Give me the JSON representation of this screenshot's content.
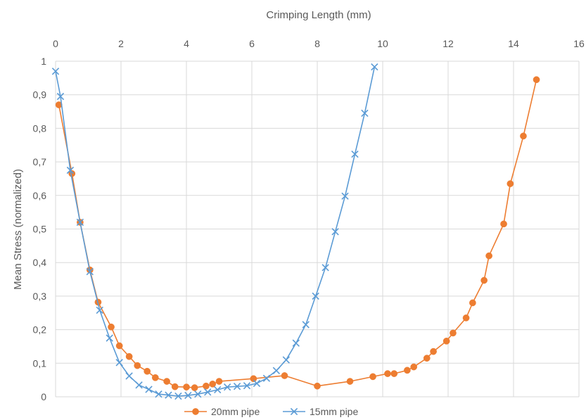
{
  "chart_data": {
    "type": "scatter",
    "xlabel": "Crimping Length (mm)",
    "ylabel": "Mean Stress (normalized)",
    "xlim": [
      0,
      16
    ],
    "ylim": [
      0,
      1
    ],
    "x_ticks": [
      "0",
      "2",
      "4",
      "6",
      "8",
      "10",
      "12",
      "14",
      "16"
    ],
    "y_ticks": [
      "0",
      "0,1",
      "0,2",
      "0,3",
      "0,4",
      "0,5",
      "0,6",
      "0,7",
      "0,8",
      "0,9",
      "1"
    ],
    "x_axis_position": "top",
    "grid": true,
    "legend_position": "bottom",
    "series": [
      {
        "name": "20mm pipe",
        "color": "#ed7d31",
        "marker": "circle",
        "x": [
          0.1,
          0.5,
          0.75,
          1.05,
          1.3,
          1.7,
          1.95,
          2.25,
          2.5,
          2.8,
          3.05,
          3.4,
          3.65,
          4.0,
          4.25,
          4.6,
          4.8,
          5.0,
          6.05,
          7.0,
          8.0,
          9.0,
          9.7,
          10.15,
          10.35,
          10.75,
          10.95,
          11.35,
          11.55,
          11.95,
          12.15,
          12.55,
          12.75,
          13.1,
          13.25,
          13.7,
          13.9,
          14.3,
          14.7
        ],
        "y": [
          0.87,
          0.665,
          0.52,
          0.378,
          0.282,
          0.208,
          0.152,
          0.12,
          0.093,
          0.076,
          0.057,
          0.046,
          0.03,
          0.029,
          0.027,
          0.032,
          0.038,
          0.046,
          0.054,
          0.063,
          0.032,
          0.046,
          0.06,
          0.069,
          0.069,
          0.079,
          0.089,
          0.115,
          0.135,
          0.166,
          0.19,
          0.235,
          0.28,
          0.347,
          0.42,
          0.515,
          0.635,
          0.777,
          0.945
        ]
      },
      {
        "name": "15mm pipe",
        "color": "#5b9bd5",
        "marker": "x",
        "x": [
          0.0,
          0.15,
          0.45,
          0.75,
          1.05,
          1.35,
          1.65,
          1.95,
          2.25,
          2.55,
          2.85,
          3.15,
          3.45,
          3.75,
          4.05,
          4.35,
          4.65,
          4.95,
          5.25,
          5.55,
          5.85,
          6.15,
          6.45,
          6.75,
          7.05,
          7.35,
          7.65,
          7.95,
          8.25,
          8.55,
          8.85,
          9.15,
          9.45,
          9.75
        ],
        "y": [
          0.97,
          0.895,
          0.675,
          0.52,
          0.373,
          0.258,
          0.175,
          0.102,
          0.062,
          0.035,
          0.022,
          0.008,
          0.005,
          0.002,
          0.004,
          0.008,
          0.014,
          0.021,
          0.029,
          0.031,
          0.033,
          0.04,
          0.055,
          0.078,
          0.11,
          0.16,
          0.215,
          0.3,
          0.385,
          0.492,
          0.598,
          0.723,
          0.845,
          0.983
        ]
      }
    ]
  }
}
